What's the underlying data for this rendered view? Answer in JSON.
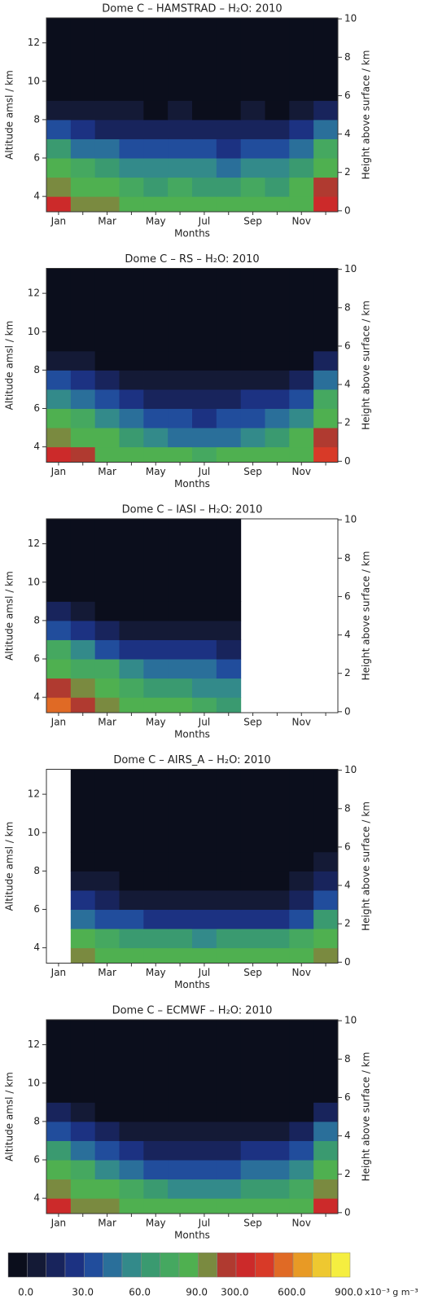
{
  "chart_data": [
    {
      "type": "heatmap",
      "title": "Dome C – HAMSTRAD – H₂O: 2010",
      "xlabel": "Months",
      "ylabel": "Altitude amsl / km",
      "y2label": "Height above surface / km",
      "categories": [
        "Jan",
        null,
        "Mar",
        null,
        "May",
        null,
        "Jul",
        null,
        "Sep",
        null,
        "Nov",
        null
      ],
      "altitude_bins": [
        3.2,
        4,
        5,
        6,
        7,
        8,
        9,
        13.3
      ],
      "values": [
        [
          400,
          250,
          200,
          150,
          120,
          150,
          120,
          120,
          150,
          120,
          150,
          400
        ],
        [
          250,
          120,
          90,
          80,
          75,
          80,
          75,
          70,
          80,
          75,
          90,
          300
        ],
        [
          120,
          80,
          70,
          65,
          60,
          65,
          60,
          55,
          65,
          60,
          70,
          150
        ],
        [
          70,
          55,
          50,
          45,
          40,
          45,
          40,
          35,
          45,
          40,
          50,
          80
        ],
        [
          40,
          30,
          25,
          25,
          20,
          25,
          20,
          20,
          25,
          20,
          30,
          50
        ],
        [
          15,
          12,
          10,
          10,
          8,
          10,
          8,
          8,
          10,
          8,
          12,
          25
        ],
        [
          5,
          4,
          4,
          3,
          3,
          3,
          3,
          3,
          3,
          3,
          4,
          6
        ]
      ],
      "ylim": [
        3.2,
        13.3
      ],
      "yticks": [
        4,
        6,
        8,
        10,
        12
      ],
      "y2lim": [
        -0.05,
        10.05
      ],
      "y2ticks": [
        0,
        2,
        4,
        6,
        8,
        10
      ]
    },
    {
      "type": "heatmap",
      "title": "Dome C – RS – H₂O: 2010",
      "xlabel": "Months",
      "ylabel": "Altitude amsl / km",
      "y2label": "Height above surface / km",
      "categories": [
        "Jan",
        null,
        "Mar",
        null,
        "May",
        null,
        "Jul",
        null,
        "Sep",
        null,
        "Nov",
        null
      ],
      "altitude_bins": [
        3.2,
        4,
        5,
        6,
        7,
        8,
        9,
        13.3
      ],
      "values": [
        [
          450,
          300,
          180,
          120,
          100,
          90,
          80,
          90,
          100,
          120,
          150,
          500
        ],
        [
          250,
          150,
          90,
          70,
          60,
          55,
          50,
          55,
          60,
          70,
          90,
          300
        ],
        [
          120,
          85,
          65,
          50,
          40,
          40,
          35,
          40,
          45,
          50,
          65,
          150
        ],
        [
          65,
          55,
          40,
          30,
          25,
          25,
          20,
          25,
          30,
          30,
          40,
          80
        ],
        [
          40,
          30,
          20,
          15,
          12,
          12,
          10,
          12,
          15,
          15,
          20,
          50
        ],
        [
          18,
          12,
          8,
          6,
          5,
          5,
          5,
          5,
          6,
          6,
          8,
          25
        ],
        [
          5,
          4,
          3,
          3,
          2,
          2,
          2,
          2,
          3,
          3,
          3,
          6
        ]
      ],
      "ylim": [
        3.2,
        13.3
      ],
      "yticks": [
        4,
        6,
        8,
        10,
        12
      ],
      "y2lim": [
        -0.05,
        10.05
      ],
      "y2ticks": [
        0,
        2,
        4,
        6,
        8,
        10
      ]
    },
    {
      "type": "heatmap",
      "title": "Dome C – IASI – H₂O: 2010",
      "xlabel": "Months",
      "ylabel": "Altitude amsl / km",
      "y2label": "Height above surface / km",
      "categories": [
        "Jan",
        null,
        "Mar",
        null,
        "May",
        null,
        "Jul",
        null,
        "Sep",
        null,
        "Nov",
        null
      ],
      "altitude_bins": [
        3.2,
        4,
        5,
        6,
        7,
        8,
        9,
        13.3
      ],
      "values": [
        [
          600,
          300,
          250,
          120,
          90,
          90,
          80,
          75,
          null,
          null,
          null,
          null
        ],
        [
          300,
          200,
          150,
          85,
          70,
          70,
          65,
          60,
          null,
          null,
          null,
          null
        ],
        [
          120,
          85,
          80,
          65,
          50,
          55,
          50,
          45,
          null,
          null,
          null,
          null
        ],
        [
          80,
          65,
          40,
          35,
          30,
          35,
          30,
          25,
          null,
          null,
          null,
          null
        ],
        [
          45,
          35,
          20,
          15,
          15,
          15,
          15,
          10,
          null,
          null,
          null,
          null
        ],
        [
          20,
          15,
          8,
          6,
          6,
          6,
          6,
          5,
          null,
          null,
          null,
          null
        ],
        [
          5,
          4,
          3,
          3,
          3,
          3,
          3,
          3,
          null,
          null,
          null,
          null
        ]
      ],
      "ylim": [
        3.2,
        13.3
      ],
      "yticks": [
        4,
        6,
        8,
        10,
        12
      ],
      "y2lim": [
        -0.05,
        10.05
      ],
      "y2ticks": [
        0,
        2,
        4,
        6,
        8,
        10
      ]
    },
    {
      "type": "heatmap",
      "title": "Dome C – AIRS_A – H₂O: 2010",
      "xlabel": "Months",
      "ylabel": "Altitude amsl / km",
      "y2label": "Height above surface / km",
      "categories": [
        "Jan",
        null,
        "Mar",
        null,
        "May",
        null,
        "Jul",
        null,
        "Sep",
        null,
        "Nov",
        null
      ],
      "altitude_bins": [
        3.2,
        4,
        5,
        6,
        7,
        8,
        9,
        13.3
      ],
      "values": [
        [
          null,
          200,
          150,
          120,
          100,
          100,
          90,
          100,
          100,
          100,
          120,
          250
        ],
        [
          null,
          90,
          80,
          75,
          70,
          70,
          65,
          70,
          70,
          70,
          80,
          150
        ],
        [
          null,
          50,
          40,
          40,
          35,
          35,
          35,
          35,
          35,
          35,
          40,
          70
        ],
        [
          null,
          30,
          20,
          18,
          15,
          15,
          15,
          15,
          15,
          15,
          20,
          40
        ],
        [
          null,
          15,
          10,
          8,
          7,
          7,
          7,
          7,
          7,
          8,
          10,
          25
        ],
        [
          null,
          8,
          5,
          4,
          4,
          4,
          4,
          4,
          4,
          4,
          5,
          12
        ],
        [
          null,
          4,
          3,
          3,
          2,
          2,
          2,
          2,
          2,
          2,
          3,
          5
        ]
      ],
      "ylim": [
        3.2,
        13.3
      ],
      "yticks": [
        4,
        6,
        8,
        10,
        12
      ],
      "y2lim": [
        -0.05,
        10.05
      ],
      "y2ticks": [
        0,
        2,
        4,
        6,
        8,
        10
      ]
    },
    {
      "type": "heatmap",
      "title": "Dome C – ECMWF – H₂O: 2010",
      "xlabel": "Months",
      "ylabel": "Altitude amsl / km",
      "y2label": "Height above surface / km",
      "categories": [
        "Jan",
        null,
        "Mar",
        null,
        "May",
        null,
        "Jul",
        null,
        "Sep",
        null,
        "Nov",
        null
      ],
      "altitude_bins": [
        3.2,
        4,
        5,
        6,
        7,
        8,
        9,
        13.3
      ],
      "values": [
        [
          400,
          250,
          200,
          150,
          130,
          120,
          120,
          120,
          130,
          140,
          160,
          450
        ],
        [
          200,
          120,
          90,
          80,
          70,
          65,
          65,
          65,
          70,
          75,
          85,
          250
        ],
        [
          100,
          80,
          65,
          55,
          45,
          45,
          45,
          45,
          50,
          55,
          65,
          120
        ],
        [
          70,
          50,
          40,
          30,
          25,
          25,
          25,
          25,
          30,
          30,
          40,
          75
        ],
        [
          45,
          30,
          20,
          15,
          12,
          12,
          12,
          12,
          15,
          15,
          20,
          50
        ],
        [
          20,
          12,
          8,
          6,
          5,
          5,
          5,
          5,
          6,
          6,
          8,
          25
        ],
        [
          6,
          4,
          3,
          3,
          3,
          3,
          3,
          3,
          3,
          3,
          3,
          7
        ]
      ],
      "ylim": [
        3.2,
        13.3
      ],
      "yticks": [
        4,
        6,
        8,
        10,
        12
      ],
      "y2lim": [
        -0.05,
        10.05
      ],
      "y2ticks": [
        0,
        2,
        4,
        6,
        8,
        10
      ]
    }
  ],
  "colorbar": {
    "levels": [
      0,
      10,
      20,
      30,
      40,
      50,
      60,
      70,
      80,
      90,
      200,
      300,
      400,
      500,
      600,
      700,
      800,
      900,
      1000
    ],
    "colors": [
      "#0b0e1c",
      "#141a36",
      "#18245c",
      "#1c3282",
      "#214d9c",
      "#2a6f9a",
      "#338a8a",
      "#3a9a70",
      "#45a860",
      "#4fb050",
      "#7a8a40",
      "#b03a30",
      "#cc2a2a",
      "#d83a28",
      "#e06a25",
      "#e89a25",
      "#eec830",
      "#f5ee40"
    ],
    "ticks": [
      {
        "value": 0,
        "label": "0.0"
      },
      {
        "value": 30,
        "label": "30.0"
      },
      {
        "value": 60,
        "label": "60.0"
      },
      {
        "value": 90,
        "label": "90.0"
      },
      {
        "value": 300,
        "label": "300.0"
      },
      {
        "value": 600,
        "label": "600.0"
      },
      {
        "value": 900,
        "label": "900.0"
      }
    ],
    "unit": "x10⁻³ g m⁻³"
  }
}
